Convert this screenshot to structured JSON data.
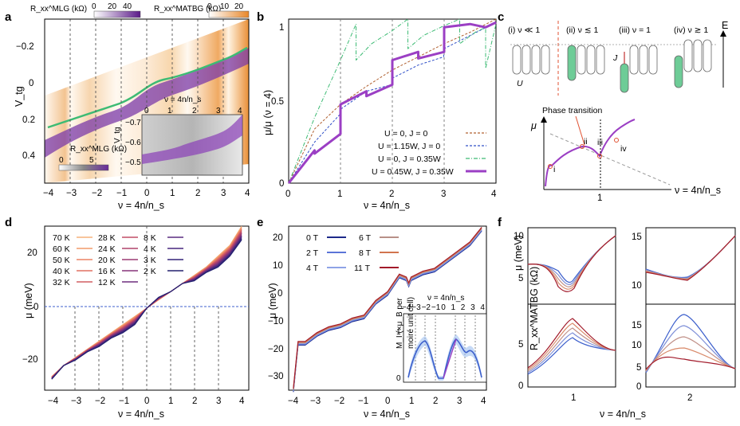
{
  "panels": {
    "a": {
      "label": "a",
      "colorbar_mlg": {
        "label": "R_xx^MLG (kΩ)",
        "ticks": [
          "0",
          "20",
          "40"
        ]
      },
      "colorbar_matbg": {
        "label": "R_xx^MATBG (kΩ)",
        "ticks": [
          "0",
          "10",
          "20"
        ]
      },
      "xlabel": "ν = 4n/n_s",
      "ylabel": "V_tg",
      "xticks": [
        "−4",
        "−3",
        "−2",
        "−1",
        "0",
        "1",
        "2",
        "3",
        "4"
      ],
      "yticks": [
        "−0.2",
        "0",
        "0.2",
        "0.4"
      ],
      "inset": {
        "title": "ν = 4n/n_s",
        "xticks": [
          "0",
          "1",
          "2",
          "3",
          "4"
        ],
        "yticks": [
          "−0.7",
          "−0.6",
          "−0.5"
        ],
        "ylabel": "V_tg",
        "colorbar_label": "R_xx^MLG (kΩ)",
        "colorbar_ticks": [
          "0",
          "5"
        ]
      }
    },
    "b": {
      "label": "b",
      "xlabel": "ν = 4n/n_s",
      "ylabel": "μ/μ (ν = 4)",
      "xticks": [
        "0",
        "1",
        "2",
        "3",
        "4"
      ],
      "yticks": [
        "0",
        "0.5",
        "1"
      ],
      "legend": [
        "U = 0, J = 0",
        "U = 1.15W, J = 0",
        "U = 0, J = 0.35W",
        "U = 0.45W, J = 0.35W"
      ]
    },
    "c": {
      "label": "c",
      "regimes": [
        "(i) ν ≪ 1",
        "(ii) ν ≲ 1",
        "(iii) ν = 1",
        "(iv) ν ≳ 1"
      ],
      "energy_label": "E",
      "u_label": "U",
      "j_label": "J",
      "phase_label": "Phase transition",
      "mu_label": "μ",
      "points": [
        "i",
        "ii",
        "iii",
        "iv"
      ],
      "x_tick": "1",
      "xlabel": "ν = 4n/n_s"
    },
    "d": {
      "label": "d",
      "xlabel": "ν = 4n/n_s",
      "ylabel": "μ (meV)",
      "xticks": [
        "−4",
        "−3",
        "−2",
        "−1",
        "0",
        "1",
        "2",
        "3",
        "4"
      ],
      "yticks": [
        "−20",
        "0",
        "20"
      ],
      "legend": [
        "70 K",
        "60 K",
        "50 K",
        "40 K",
        "32 K",
        "28 K",
        "24 K",
        "20 K",
        "16 K",
        "12 K",
        "8 K",
        "4 K",
        "3 K",
        "2 K"
      ]
    },
    "e": {
      "label": "e",
      "xlabel": "ν = 4n/n_s",
      "ylabel": "μ (meV)",
      "xticks": [
        "−4",
        "−3",
        "−2",
        "−1",
        "0",
        "1",
        "2",
        "3",
        "4"
      ],
      "yticks": [
        "20",
        "10",
        "0",
        "−10",
        "−20",
        "−30"
      ],
      "legend": [
        "0 T",
        "2 T",
        "4 T",
        "6 T",
        "8 T",
        "11 T"
      ],
      "inset": {
        "title": "ν = 4n/n_s",
        "xticks": [
          "−4",
          "−3",
          "−2",
          "−1",
          "0",
          "1",
          "2",
          "3",
          "4"
        ],
        "ylabel_lines": [
          "M_I (×μ_B per",
          "moiré unit cell)"
        ],
        "yticks": [
          "1",
          "0"
        ]
      }
    },
    "f": {
      "label": "f",
      "xlabel": "ν = 4n/n_s",
      "ylabel_top": "μ (meV)",
      "ylabel_bottom": "R_xx^MATBG (kΩ)",
      "left_top_yticks": [
        "10",
        "5"
      ],
      "right_top_yticks": [
        "15",
        "10"
      ],
      "left_bottom_yticks": [
        "5",
        "0"
      ],
      "right_bottom_yticks": [
        "15",
        "10",
        "5",
        "0"
      ],
      "left_xtick": "1",
      "right_xtick": "2"
    }
  },
  "colors": {
    "purple": "#9b3fc4",
    "green": "#3dbb74",
    "orange": "#e08a2c",
    "blue_dash": "#3050c8",
    "brown_dash": "#b06030",
    "inset_blue": "#3c5fcc"
  },
  "chart_data": [
    {
      "panel": "b",
      "type": "line",
      "xlim": [
        0,
        4
      ],
      "ylim": [
        0,
        1
      ],
      "series": [
        {
          "name": "U = 0, J = 0",
          "x": [
            0,
            0.5,
            1,
            1.5,
            2,
            2.5,
            3,
            3.5,
            4
          ],
          "y": [
            0,
            0.33,
            0.48,
            0.59,
            0.69,
            0.77,
            0.85,
            0.92,
            1.0
          ]
        },
        {
          "name": "U = 1.15W, J = 0",
          "x": [
            0,
            0.5,
            0.99,
            1.0,
            1.5,
            1.99,
            2.0,
            2.5,
            2.99,
            3.0,
            3.5,
            4
          ],
          "y": [
            0,
            0.25,
            0.42,
            0.45,
            0.56,
            0.6,
            0.64,
            0.72,
            0.77,
            0.82,
            0.9,
            0.98
          ]
        },
        {
          "name": "U = 0, J = 0.35W",
          "x": [
            0,
            0.5,
            1.0,
            1.3,
            1.3,
            1.6,
            2.0,
            2.3,
            2.3,
            2.6,
            3.0,
            3.3,
            3.3,
            3.6,
            3.8,
            3.8,
            4
          ],
          "y": [
            0,
            0.4,
            0.75,
            0.97,
            0.75,
            0.85,
            0.93,
            1.0,
            0.82,
            0.9,
            0.96,
            1.0,
            0.85,
            0.92,
            0.95,
            0.7,
            0.97
          ]
        },
        {
          "name": "U = 0.45W, J = 0.35W",
          "x": [
            0,
            0.5,
            0.5,
            1.0,
            1.0,
            1.5,
            1.5,
            2.0,
            2.0,
            2.5,
            2.5,
            3.0,
            3.0,
            3.5,
            3.8,
            4
          ],
          "y": [
            0,
            0.2,
            0.18,
            0.3,
            0.48,
            0.56,
            0.53,
            0.6,
            0.75,
            0.8,
            0.76,
            0.8,
            0.95,
            0.97,
            0.95,
            0.98
          ]
        }
      ]
    },
    {
      "panel": "d",
      "type": "line",
      "xlim": [
        -4.3,
        4.3
      ],
      "ylim": [
        -30,
        30
      ],
      "series_name_source": "legend",
      "x": [
        -4,
        -3.5,
        -3,
        -2.5,
        -2,
        -1.5,
        -1,
        -0.5,
        0,
        0.5,
        1,
        1.5,
        2,
        2.5,
        3,
        3.5,
        4
      ],
      "low_T_curve": [
        -26,
        -21,
        -19,
        -16,
        -14,
        -11,
        -9,
        -6,
        0,
        4,
        6,
        9,
        10,
        13,
        15,
        19,
        25
      ],
      "high_T_curve": [
        -25,
        -21,
        -18,
        -15,
        -12,
        -9,
        -6,
        -3,
        0,
        3,
        6,
        9,
        12,
        15,
        19,
        23,
        30
      ]
    },
    {
      "panel": "e",
      "type": "line",
      "xlim": [
        -4.2,
        4.2
      ],
      "ylim": [
        -33,
        23
      ],
      "x": [
        -4,
        -3.8,
        -3.5,
        -3,
        -2.5,
        -2,
        -1.5,
        -1,
        -0.5,
        0,
        0.5,
        0.8,
        0.9,
        1,
        1.5,
        2,
        2.5,
        3,
        3.5,
        4
      ],
      "y": [
        -33,
        -17,
        -17,
        -14,
        -12,
        -11,
        -9,
        -8,
        -3,
        0,
        6,
        5,
        3,
        5,
        7,
        8,
        11,
        14,
        17,
        22
      ]
    }
  ]
}
